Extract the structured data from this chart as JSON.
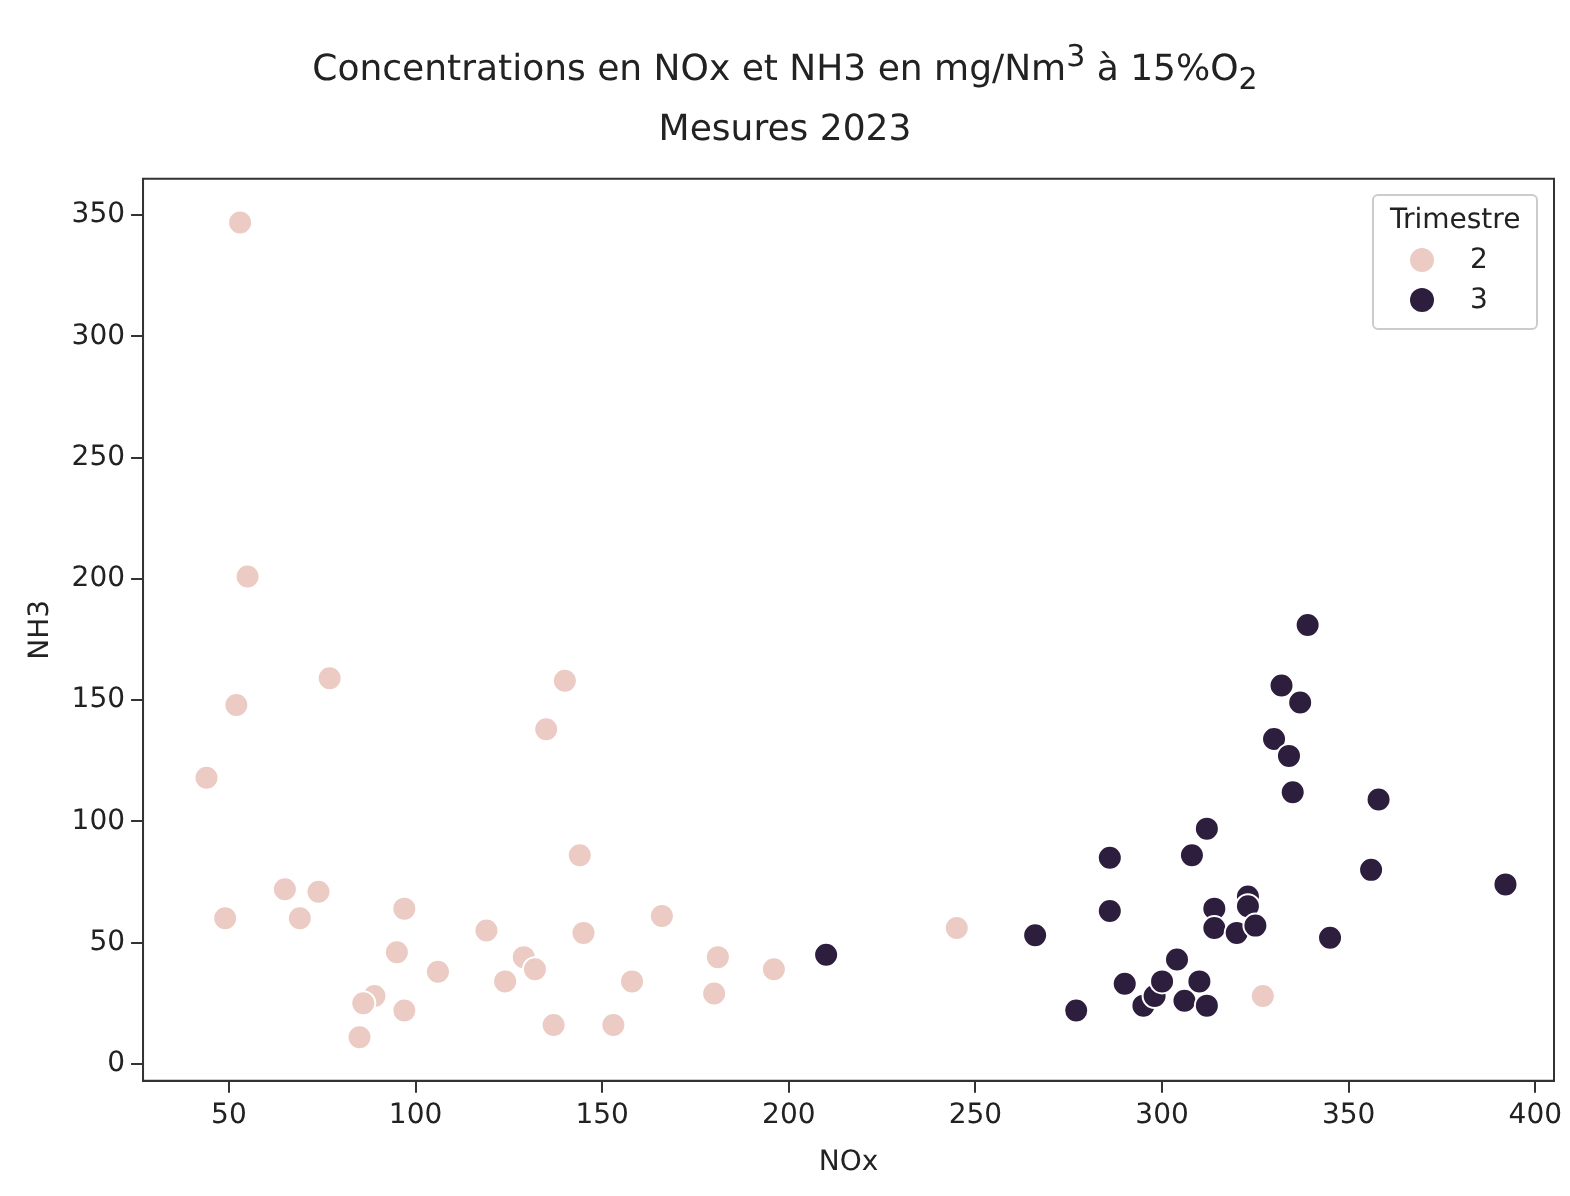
{
  "chart_data": {
    "type": "scatter",
    "title": "Concentrations en NOx et NH3 en mg/Nm$^{3}$ à 15%O$_{2}$",
    "subtitle": "Mesures 2023",
    "xlabel": "NOx",
    "ylabel": "NH3",
    "legend_title": "Trimestre",
    "legend": "top right",
    "grid": false,
    "marker": "circle",
    "xlim": [
      27,
      405
    ],
    "xticks": [
      50,
      100,
      150,
      200,
      250,
      300,
      350,
      400
    ],
    "ylim": [
      -7,
      365
    ],
    "yticks": [
      0,
      50,
      100,
      150,
      200,
      250,
      300,
      350
    ],
    "series": [
      {
        "name": "2",
        "color": "#ebcbc3",
        "x": [
          53,
          55,
          52,
          44,
          49,
          65,
          69,
          74,
          77,
          97,
          95,
          89,
          86,
          97,
          85,
          106,
          119,
          129,
          132,
          124,
          135,
          140,
          144,
          145,
          137,
          153,
          158,
          166,
          181,
          180,
          196,
          245,
          327
        ],
        "values": [
          347,
          201,
          148,
          118,
          60,
          72,
          60,
          71,
          159,
          64,
          46,
          28,
          25,
          22,
          11,
          38,
          55,
          44,
          39,
          34,
          138,
          158,
          86,
          54,
          16,
          16,
          34,
          61,
          44,
          29,
          39,
          56,
          28
        ]
      },
      {
        "name": "3",
        "color": "#2d1e3e",
        "x": [
          210,
          266,
          277,
          286,
          286,
          290,
          295,
          298,
          300,
          304,
          306,
          310,
          312,
          308,
          312,
          314,
          314,
          320,
          323,
          323,
          325,
          330,
          332,
          334,
          337,
          339,
          335,
          345,
          356,
          358,
          392
        ],
        "values": [
          45,
          53,
          22,
          85,
          63,
          33,
          24,
          28,
          34,
          43,
          26,
          34,
          24,
          86,
          97,
          64,
          56,
          54,
          69,
          65,
          57,
          134,
          156,
          127,
          149,
          181,
          112,
          52,
          80,
          109,
          74
        ]
      }
    ]
  }
}
